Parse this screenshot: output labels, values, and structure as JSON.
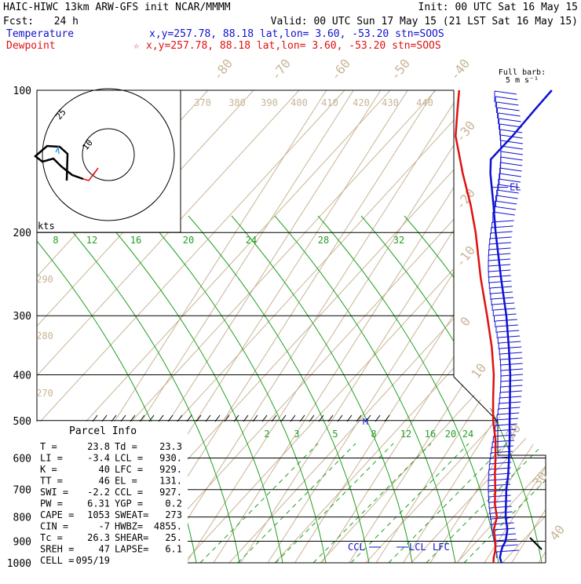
{
  "header": {
    "model_line": "HAIC-HIWC 13km ARW-GFS init   NCAR/MMMM",
    "init_line": "Init: 00 UTC Sat 16 May 15",
    "fcst_label": "Fcst:",
    "fcst_value": "24 h",
    "valid_line": "Valid: 00 UTC Sun 17 May 15 (21 LST Sat 16 May 15)",
    "temperature_label": "Temperature",
    "temperature_info": "x,y=257.78, 88.18   lat,lon=  3.60, -53.20  stn=SOOS",
    "dewpoint_label": "Dewpoint",
    "dewpoint_info": "x,y=257.78, 88.18   lat,lon=  3.60, -53.20  stn=SOOS",
    "dewpoint_marker": "☆"
  },
  "colors": {
    "temperature": "#1010d0",
    "dewpoint": "#e01010",
    "isotherm": "#c8b496",
    "mixing_ratio": "#20a020",
    "isobar": "#000000",
    "hodograph_trace": "#000000",
    "hodograph_trace_b": "#e01010",
    "hodograph_trace_c": "#40a0e0"
  },
  "chart_data": {
    "type": "line",
    "chart_kind": "skew-T log-P sounding",
    "y_scale": "log",
    "y_axis_inverted": true,
    "ylim": [
      1000,
      100
    ],
    "pressure_ticks": [
      "100",
      "200",
      "300",
      "400",
      "500",
      "600",
      "700",
      "800",
      "900",
      "1000"
    ],
    "isotherm_labels": [
      "-80",
      "-70",
      "-60",
      "-50",
      "-40",
      "-30",
      "-20",
      "-10",
      "0",
      "10",
      "20",
      "30",
      "40"
    ],
    "theta_labels": [
      "370",
      "380",
      "390",
      "400",
      "410",
      "420",
      "430",
      "440",
      "290",
      "280",
      "270"
    ],
    "mixing_ratio_labels_top": [
      "8",
      "12",
      "16",
      "20",
      "24",
      "28",
      "32"
    ],
    "mixing_ratio_labels_bottom": [
      "2",
      "3",
      "5",
      "8",
      "12",
      "16",
      "20",
      "24"
    ],
    "series": [
      {
        "name": "Temperature",
        "color": "#1010d0",
        "points": [
          [
            1000,
            26.3
          ],
          [
            975,
            24.5
          ],
          [
            950,
            23.6
          ],
          [
            925,
            22.9
          ],
          [
            900,
            22.7
          ],
          [
            850,
            20.6
          ],
          [
            800,
            17.0
          ],
          [
            750,
            14.0
          ],
          [
            700,
            10.8
          ],
          [
            650,
            7.9
          ],
          [
            600,
            4.3
          ],
          [
            550,
            0.3
          ],
          [
            500,
            -4.3
          ],
          [
            450,
            -9.3
          ],
          [
            400,
            -14.9
          ],
          [
            350,
            -21.9
          ],
          [
            300,
            -30.3
          ],
          [
            250,
            -41.1
          ],
          [
            200,
            -53.9
          ],
          [
            175,
            -61.2
          ],
          [
            150,
            -69.8
          ],
          [
            140,
            -73.0
          ],
          [
            125,
            -70.5
          ],
          [
            110,
            -68.5
          ],
          [
            100,
            -66.8
          ]
        ]
      },
      {
        "name": "Dewpoint",
        "color": "#e01010",
        "points": [
          [
            1000,
            23.3
          ],
          [
            975,
            22.2
          ],
          [
            950,
            21.4
          ],
          [
            925,
            20.3
          ],
          [
            900,
            18.9
          ],
          [
            850,
            15.6
          ],
          [
            800,
            13.8
          ],
          [
            750,
            9.9
          ],
          [
            700,
            6.7
          ],
          [
            650,
            3.0
          ],
          [
            600,
            -0.7
          ],
          [
            550,
            -4.9
          ],
          [
            500,
            -10.4
          ],
          [
            450,
            -15.5
          ],
          [
            400,
            -21.0
          ],
          [
            350,
            -28.2
          ],
          [
            300,
            -37.4
          ],
          [
            250,
            -48.6
          ],
          [
            200,
            -61.3
          ],
          [
            175,
            -69.6
          ],
          [
            150,
            -80.0
          ],
          [
            125,
            -91.5
          ],
          [
            110,
            -97.0
          ],
          [
            100,
            -101.0
          ]
        ]
      }
    ],
    "level_markers": [
      {
        "label": "EL",
        "pressure": 131
      },
      {
        "label": "CCL",
        "pressure": 927
      },
      {
        "label": "LCL",
        "pressure": 930
      },
      {
        "label": "LFC",
        "pressure": 929
      },
      {
        "label": "M",
        "pressure": 500
      }
    ],
    "wind_barbs_title": "Full barb:",
    "wind_barbs_unit": "5 m s⁻¹"
  },
  "hodograph": {
    "units": "kts",
    "ring_labels": [
      "25",
      "10"
    ]
  },
  "parcel_info": {
    "title": "Parcel Info",
    "rows": [
      [
        "T   =",
        "23.8",
        "Td  =",
        "23.3"
      ],
      [
        "LI  =",
        "-3.4",
        "LCL =",
        "930."
      ],
      [
        "K   =",
        "40",
        "LFC =",
        "929."
      ],
      [
        "TT  =",
        "46",
        "EL  =",
        "131."
      ],
      [
        "SWI =",
        "-2.2",
        "CCL =",
        "927."
      ],
      [
        "PW  =",
        "6.31",
        "YGP =",
        "0.2"
      ],
      [
        "CAPE =",
        "1053",
        "SWEAT=",
        "273"
      ],
      [
        "CIN  =",
        "-7",
        "HWBZ=",
        "4855."
      ],
      [
        "Tc  =",
        "26.3",
        "SHEAR=",
        "25."
      ],
      [
        "SREH =",
        "47",
        "LAPSE=",
        "6.1"
      ],
      [
        "CELL =",
        "095/19",
        "",
        ""
      ]
    ]
  }
}
